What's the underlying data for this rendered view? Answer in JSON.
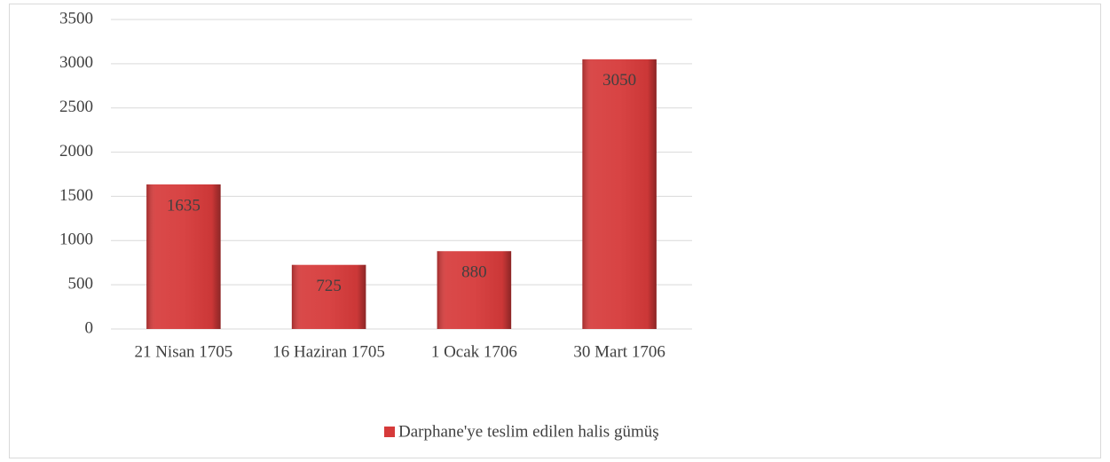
{
  "chart_data": {
    "type": "bar",
    "categories": [
      "21 Nisan 1705",
      "16 Haziran 1705",
      "1 Ocak 1706",
      "30 Mart 1706"
    ],
    "series": [
      {
        "name": "Darphane'ye teslim edilen halis gümüş",
        "color": "#d63a3a",
        "values": [
          1635,
          725,
          880,
          3050
        ]
      }
    ],
    "ylim": [
      0,
      3500
    ],
    "yticks": [
      0,
      500,
      1000,
      1500,
      2000,
      2500,
      3000,
      3500
    ],
    "grid": true,
    "legend": "bottom"
  }
}
